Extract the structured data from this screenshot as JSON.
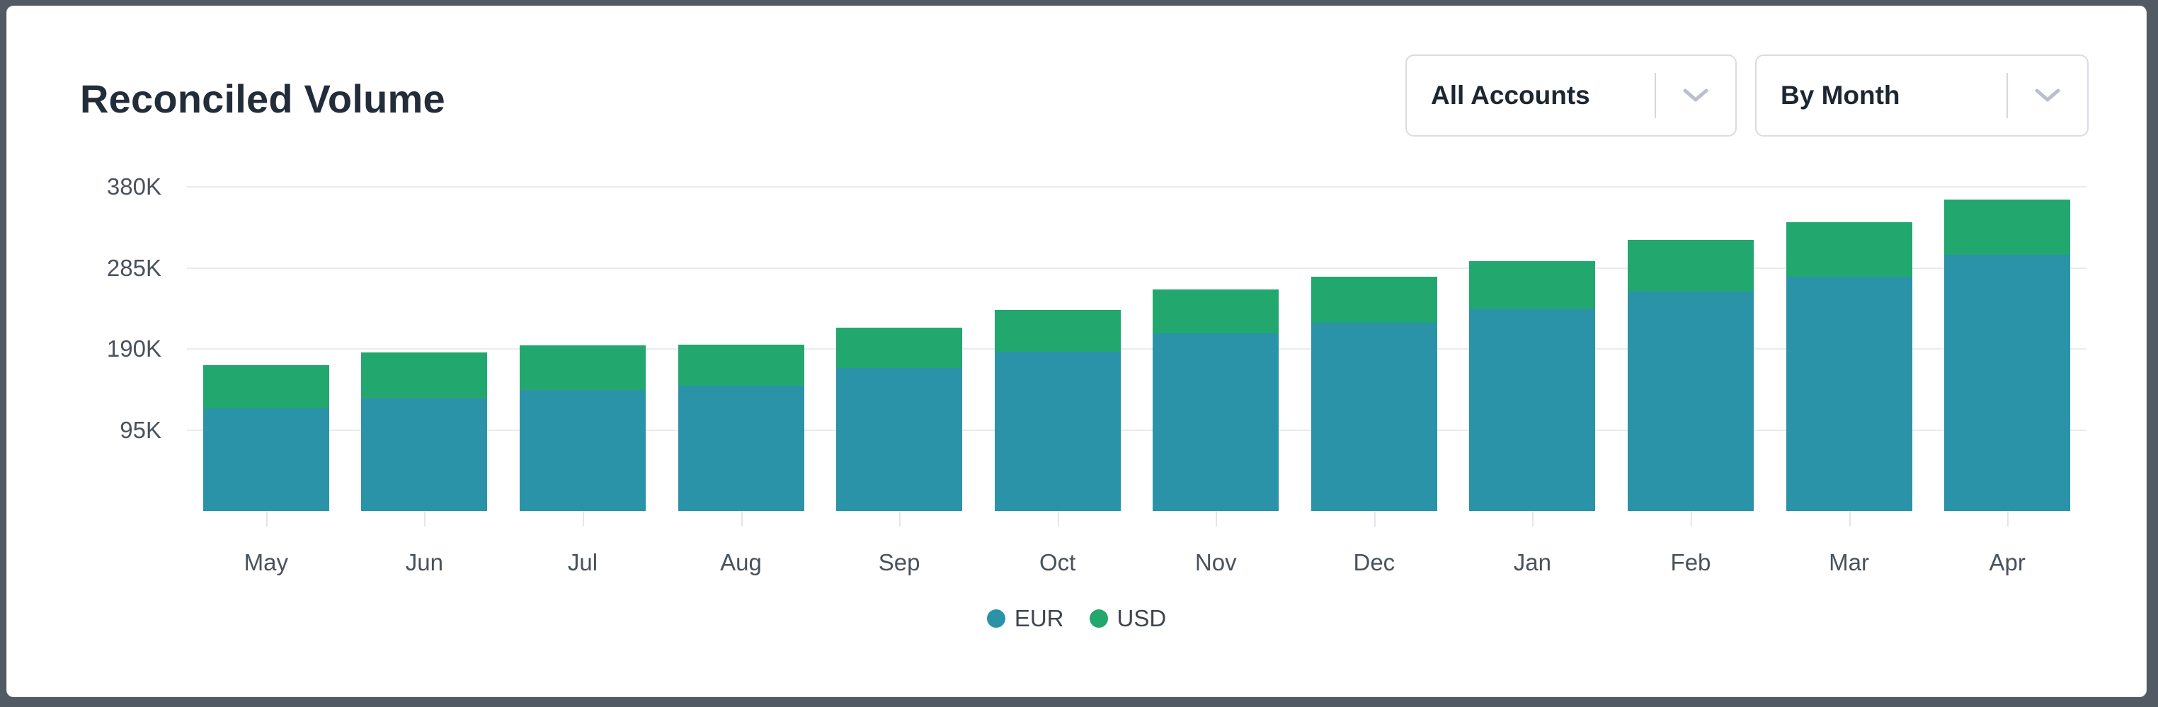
{
  "frame": {
    "color": "#525b64"
  },
  "header": {
    "title": "Reconciled Volume",
    "accounts_dropdown": {
      "value": "All Accounts"
    },
    "period_dropdown": {
      "value": "By Month"
    }
  },
  "chart_data": {
    "type": "bar",
    "stacked": true,
    "title": "Reconciled Volume",
    "categories": [
      "May",
      "Jun",
      "Jul",
      "Aug",
      "Sep",
      "Oct",
      "Nov",
      "Dec",
      "Jan",
      "Feb",
      "Mar",
      "Apr"
    ],
    "series": [
      {
        "name": "EUR",
        "color": "#2a93a8",
        "values": [
          120000,
          132000,
          142000,
          147000,
          168000,
          187000,
          208000,
          221000,
          237000,
          257000,
          275000,
          300000
        ]
      },
      {
        "name": "USD",
        "color": "#22a76f",
        "values": [
          51000,
          54000,
          52000,
          48000,
          47000,
          49000,
          52000,
          54000,
          56000,
          61000,
          64000,
          65000
        ]
      }
    ],
    "totals": [
      171000,
      186000,
      194000,
      195000,
      215000,
      236000,
      260000,
      275000,
      293000,
      318000,
      339000,
      365000
    ],
    "xlabel": "",
    "ylabel": "",
    "ylim": [
      0,
      380000
    ],
    "y_ticks": [
      {
        "label": "95K",
        "value": 95000
      },
      {
        "label": "190K",
        "value": 190000
      },
      {
        "label": "285K",
        "value": 285000
      },
      {
        "label": "380K",
        "value": 380000
      }
    ],
    "grid": true,
    "legend_position": "bottom",
    "gridline_color": "#e9ebef",
    "axis_label_color": "#49525c"
  }
}
